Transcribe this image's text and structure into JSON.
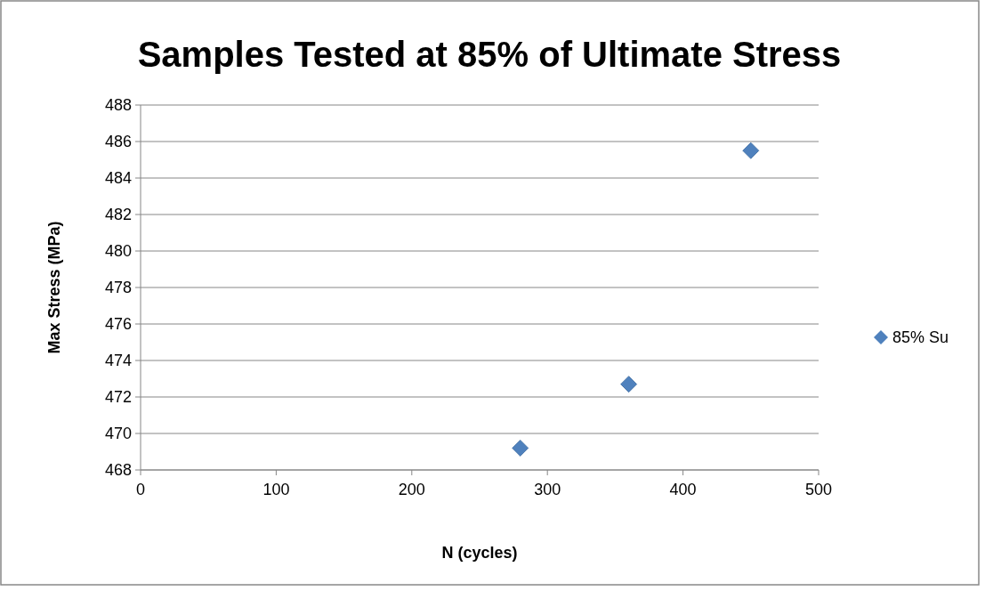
{
  "chart_data": {
    "type": "scatter",
    "title": "Samples Tested at 85% of Ultimate Stress",
    "xlabel": "N (cycles)",
    "ylabel": "Max Stress (MPa)",
    "x": [
      280,
      360,
      450
    ],
    "series": [
      {
        "name": "85% Su",
        "color": "#4f81bd",
        "values": [
          469.2,
          472.7,
          485.5
        ]
      }
    ],
    "xlim": [
      0,
      500
    ],
    "xticks": [
      0,
      100,
      200,
      300,
      400,
      500
    ],
    "ylim": [
      468,
      488
    ],
    "yticks": [
      468,
      470,
      472,
      474,
      476,
      478,
      480,
      482,
      484,
      486,
      488
    ],
    "grid": "y",
    "legend": "right",
    "marker": "diamond"
  }
}
